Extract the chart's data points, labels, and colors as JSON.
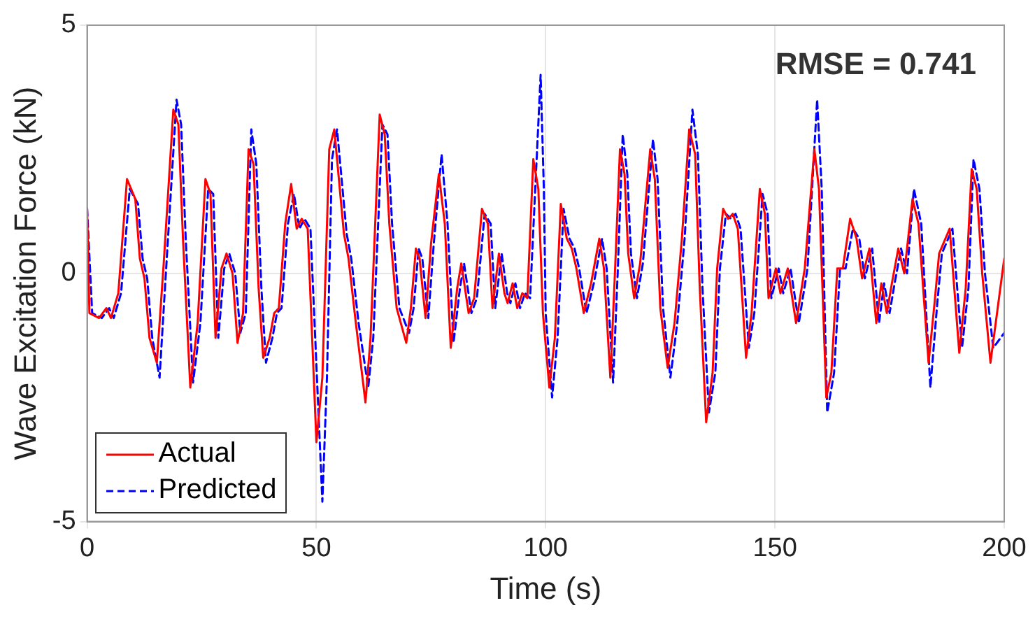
{
  "chart_data": {
    "type": "line",
    "xlabel": "Time (s)",
    "ylabel": "Wave Excitation Force (kN)",
    "xlim": [
      0,
      200
    ],
    "xticks": [
      0,
      50,
      100,
      150,
      200
    ],
    "ylim": [
      -5,
      5
    ],
    "yticks": [
      -5,
      0,
      5
    ],
    "grid": true,
    "legend": "bottom left",
    "marker": "none",
    "annotations": [
      "RMSE = 0.741"
    ],
    "series": [
      {
        "name": "Actual",
        "color": "#ff0000",
        "line_style": "solid",
        "x": [
          0,
          0.5,
          2.6,
          4.2,
          5.2,
          6.8,
          8.7,
          10.5,
          11.5,
          12.5,
          13.6,
          15.2,
          16.7,
          18.8,
          19.9,
          20.9,
          22.5,
          24.1,
          25.8,
          26.9,
          28,
          29.3,
          30.4,
          31.7,
          32.8,
          34,
          35.2,
          36.3,
          37.4,
          38.4,
          39.8,
          40.8,
          41.8,
          43.2,
          44.5,
          45.7,
          46.8,
          48.1,
          50,
          51.3,
          52.8,
          53.9,
          56,
          57,
          58.6,
          60.7,
          61.8,
          63.8,
          64.9,
          65.9,
          67.5,
          69.6,
          70.6,
          71.7,
          72.5,
          73.8,
          75,
          76.7,
          78,
          79.3,
          80.7,
          81.6,
          83.2,
          84.4,
          86.1,
          87.4,
          88.4,
          89.8,
          91,
          91.7,
          92.8,
          93.8,
          94.9,
          96,
          97.3,
          98.4,
          99.4,
          100.8,
          102,
          103.3,
          104.6,
          105.7,
          106.7,
          108.3,
          109.9,
          111.7,
          112.7,
          114.1,
          115.1,
          116.2,
          117.2,
          118,
          119.3,
          120.6,
          122.8,
          123.8,
          125,
          126.6,
          128.1,
          129.7,
          131.3,
          132.6,
          133.6,
          135,
          136.4,
          137.4,
          138.7,
          139.8,
          140.8,
          141.9,
          143.7,
          144.9,
          146.7,
          147.8,
          148.6,
          150.2,
          151.2,
          152.8,
          154.6,
          156.5,
          158.6,
          159.6,
          161.2,
          162.3,
          163.6,
          164.8,
          166.4,
          167.8,
          169,
          170.6,
          172.1,
          173.2,
          174.4,
          175.5,
          176.9,
          178.2,
          180,
          181.3,
          183.5,
          184.8,
          185.8,
          188.1,
          190.2,
          191.6,
          192.9,
          194,
          195.2,
          197,
          200
        ],
        "values": [
          1.3,
          -0.8,
          -0.9,
          -0.7,
          -0.9,
          -0.4,
          1.9,
          1.5,
          0.3,
          -0.1,
          -1.3,
          -1.8,
          0.2,
          3.3,
          3,
          0.7,
          -2.3,
          -1,
          1.9,
          1.6,
          -1.3,
          0.1,
          0.4,
          0,
          -1.4,
          -0.8,
          2.5,
          2.2,
          -0.3,
          -1.7,
          -1.3,
          -0.8,
          -0.7,
          1,
          1.8,
          0.9,
          1.1,
          0.9,
          -3.4,
          -2.1,
          2.5,
          2.9,
          0.8,
          0.3,
          -1,
          -2.6,
          -1.3,
          3.2,
          2.8,
          1,
          -0.7,
          -1.4,
          -0.7,
          0.5,
          0.3,
          -0.9,
          0.6,
          2,
          1,
          -1.5,
          -0.3,
          0.2,
          -0.8,
          -0.5,
          1.3,
          1,
          -0.7,
          0.4,
          -0.4,
          -0.6,
          -0.2,
          -0.7,
          -0.4,
          -0.5,
          2.3,
          1.7,
          -0.8,
          -2.3,
          -1.3,
          1.4,
          0.7,
          0.5,
          0.1,
          -0.8,
          -0.2,
          0.7,
          0.1,
          -2.1,
          0,
          2.5,
          2,
          0.4,
          -0.5,
          0.2,
          2.5,
          1.9,
          -0.7,
          -1.9,
          -1,
          0.7,
          2.9,
          2.4,
          -0.3,
          -3,
          -2,
          0.1,
          1.3,
          1.1,
          1.2,
          0.9,
          -1.7,
          -0.8,
          1.7,
          1.2,
          -0.5,
          0.1,
          -0.4,
          0.1,
          -1,
          0.1,
          2.5,
          1.7,
          -2.5,
          -2,
          0.1,
          0.1,
          1.1,
          0.7,
          -0.1,
          0.5,
          -1,
          -0.2,
          -0.8,
          -0.2,
          0.5,
          0,
          1.5,
          1,
          -1.8,
          -0.6,
          0.4,
          0.9,
          -1.6,
          -0.3,
          2.1,
          1.7,
          0,
          -1.8,
          0.3
        ]
      },
      {
        "name": "Predicted",
        "color": "#0000ff",
        "line_style": "dashed",
        "x": [
          0,
          1.1,
          3.2,
          4.8,
          5.8,
          7.4,
          9.3,
          11.1,
          12.1,
          13.1,
          14.2,
          15.8,
          17.3,
          19.5,
          20.5,
          21.5,
          23.1,
          24.7,
          26.4,
          27.5,
          28.6,
          29.9,
          31,
          32.3,
          33.4,
          34.6,
          35.8,
          36.9,
          38,
          39,
          40.4,
          41.4,
          42.4,
          43.8,
          45.1,
          46.3,
          47.4,
          48.7,
          51.3,
          52.3,
          53.4,
          54.5,
          56.6,
          57.6,
          59.2,
          61.3,
          62.4,
          64.4,
          65.5,
          66.5,
          68.1,
          70.2,
          71.2,
          72.3,
          73.1,
          74.4,
          75.6,
          77.3,
          78.6,
          79.9,
          81.3,
          82.2,
          83.8,
          85,
          86.7,
          88,
          89,
          90.4,
          91.6,
          92.3,
          93.4,
          94.4,
          95.5,
          96.6,
          98.9,
          99.6,
          100,
          101.4,
          102.6,
          103.9,
          105.2,
          106.3,
          107.3,
          108.9,
          110.5,
          112.3,
          113.3,
          114.7,
          115.7,
          116.8,
          117.8,
          118.6,
          119.9,
          121.2,
          123.4,
          124.4,
          125.6,
          127.2,
          128.7,
          130.3,
          132,
          133.2,
          134.2,
          135.6,
          137,
          138,
          139.3,
          140.4,
          141.4,
          142.5,
          144.3,
          145.5,
          147.3,
          148.4,
          149.2,
          150.8,
          151.8,
          153.4,
          155.2,
          157.1,
          159.2,
          160.2,
          161.4,
          162.9,
          164.2,
          165.4,
          167,
          168.4,
          169.6,
          171.2,
          172.7,
          173.8,
          175,
          176.1,
          177.5,
          178.8,
          180.3,
          181.9,
          183.9,
          185.4,
          186.4,
          188.7,
          190.8,
          192.2,
          193.3,
          194.6,
          195.8,
          197.6,
          200
        ],
        "values": [
          1.3,
          -0.8,
          -0.9,
          -0.7,
          -0.9,
          -0.4,
          1.7,
          1.4,
          0.3,
          -0.1,
          -1.3,
          -2.1,
          0.2,
          3.5,
          3,
          0.7,
          -2.2,
          -1,
          1.7,
          1.6,
          -1.3,
          0.1,
          0.4,
          0,
          -1.2,
          -0.8,
          2.9,
          2.2,
          -0.3,
          -1.8,
          -1.3,
          -0.8,
          -0.7,
          1,
          1.6,
          0.9,
          1.1,
          0.9,
          -4.6,
          -2.1,
          2.3,
          2.9,
          0.8,
          0.3,
          -1,
          -2.3,
          -1.3,
          3,
          2.8,
          1,
          -0.7,
          -1.2,
          -0.7,
          0.5,
          0.3,
          -0.9,
          0.6,
          2.4,
          1,
          -1.4,
          -0.3,
          0.2,
          -0.8,
          -0.5,
          1.2,
          1,
          -0.7,
          0.4,
          -0.4,
          -0.6,
          -0.2,
          -0.7,
          -0.4,
          -0.5,
          4,
          1.7,
          -0.8,
          -2.5,
          -1.3,
          1.3,
          0.7,
          0.5,
          0.1,
          -0.8,
          -0.2,
          0.7,
          0.1,
          -2.2,
          0,
          2.8,
          2,
          0.4,
          -0.5,
          0.2,
          2.7,
          1.9,
          -0.7,
          -2.1,
          -1,
          0.7,
          3.3,
          2.4,
          -0.3,
          -2.8,
          -2,
          0.1,
          1.2,
          1.1,
          1.2,
          0.9,
          -1.5,
          -0.8,
          1.6,
          1.2,
          -0.5,
          0.1,
          -0.4,
          0.1,
          -1,
          0.1,
          3.5,
          1.7,
          -2.8,
          -2,
          0.1,
          0.1,
          0.9,
          0.7,
          -0.1,
          0.5,
          -1,
          -0.2,
          -0.8,
          -0.2,
          0.5,
          0,
          1.7,
          1,
          -2.3,
          -0.6,
          0.4,
          0.9,
          -1.5,
          -0.3,
          2.3,
          1.7,
          0,
          -1.5,
          -1.2
        ]
      }
    ]
  }
}
